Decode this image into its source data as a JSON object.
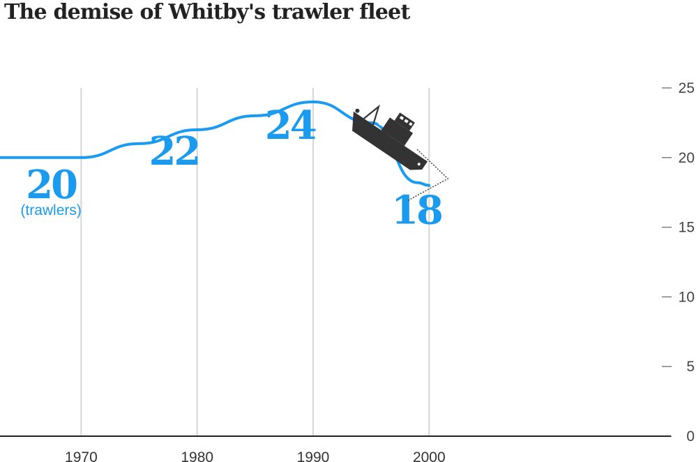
{
  "chart_data": {
    "type": "line",
    "title": "The demise of Whitby's trawler fleet",
    "xlabel": "",
    "ylabel": "",
    "x": [
      1963,
      1970,
      1975,
      1980,
      1985,
      1990,
      1995,
      1999,
      2000
    ],
    "series": [
      {
        "values": [
          20,
          20,
          21,
          22,
          23,
          24,
          22.5,
          18.2,
          18
        ]
      }
    ],
    "xticks": [
      "1970",
      "1980",
      "1990",
      "2000"
    ],
    "xtick_values": [
      1970,
      1980,
      1990,
      2000
    ],
    "yticks": [
      "0",
      "5",
      "10",
      "15",
      "20",
      "25"
    ],
    "ytick_values": [
      0,
      5,
      10,
      15,
      20,
      25
    ],
    "xlim": [
      1963,
      2000
    ],
    "ylim": [
      0,
      25
    ],
    "y_axis_side": "right",
    "grid": "vertical",
    "annotations": [
      {
        "text": "20",
        "x": 1968,
        "y": 20
      },
      {
        "text": "(trawlers)",
        "x": 1968,
        "y": 20
      },
      {
        "text": "22",
        "x": 1978,
        "y": 22
      },
      {
        "text": "24",
        "x": 1988,
        "y": 24
      },
      {
        "text": "18",
        "x": 1998,
        "y": 18
      }
    ],
    "line_color": "#1a9bf0",
    "grid_color": "#d6d6d6",
    "illustration": "sinking-trawler-icon"
  }
}
